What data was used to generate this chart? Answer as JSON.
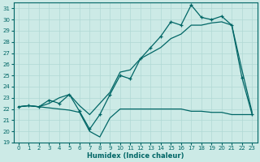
{
  "xlabel": "Humidex (Indice chaleur)",
  "xlim": [
    -0.5,
    23.5
  ],
  "ylim": [
    19,
    31.5
  ],
  "yticks": [
    19,
    20,
    21,
    22,
    23,
    24,
    25,
    26,
    27,
    28,
    29,
    30,
    31
  ],
  "xticks": [
    0,
    1,
    2,
    3,
    4,
    5,
    6,
    7,
    8,
    9,
    10,
    11,
    12,
    13,
    14,
    15,
    16,
    17,
    18,
    19,
    20,
    21,
    22,
    23
  ],
  "background_color": "#cceae6",
  "grid_color": "#b0d8d4",
  "line_color": "#006666",
  "line1_y": [
    22.2,
    22.3,
    22.2,
    22.1,
    22.0,
    21.9,
    21.7,
    20.0,
    19.5,
    21.2,
    22.0,
    22.0,
    22.0,
    22.0,
    22.0,
    22.0,
    22.0,
    21.8,
    21.8,
    21.7,
    21.7,
    21.5,
    21.5,
    21.5
  ],
  "line2_y": [
    22.2,
    22.3,
    22.2,
    22.8,
    22.5,
    23.3,
    21.8,
    20.2,
    21.5,
    23.3,
    25.0,
    24.7,
    26.5,
    27.5,
    28.5,
    29.8,
    29.5,
    31.3,
    30.2,
    30.0,
    30.3,
    29.5,
    24.8,
    21.5
  ],
  "line3_y": [
    22.2,
    22.3,
    22.2,
    22.5,
    23.0,
    23.3,
    22.3,
    21.5,
    22.5,
    23.5,
    25.3,
    25.5,
    26.5,
    27.0,
    27.5,
    28.3,
    28.7,
    29.5,
    29.5,
    29.7,
    29.8,
    29.5,
    25.5,
    21.7
  ]
}
